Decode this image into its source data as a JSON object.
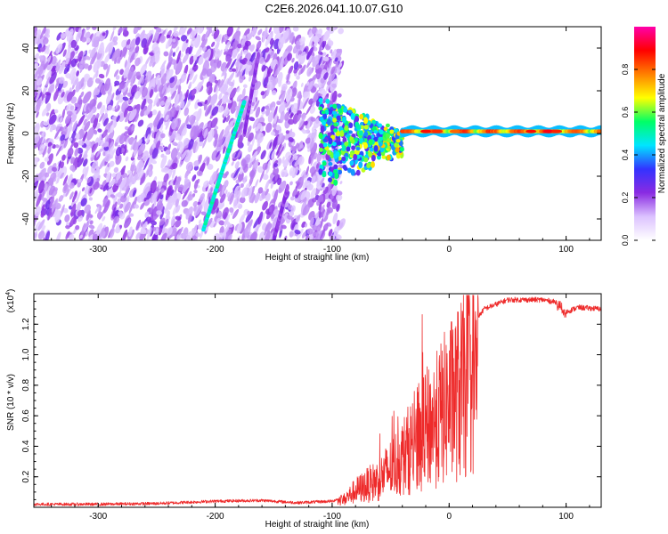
{
  "page_title": "C2E6.2026.041.10.07.G10",
  "chart_data": [
    {
      "type": "heatmap",
      "xlabel": "Height of straight line (km)",
      "ylabel": "Frequency (Hz)",
      "xlim": [
        -355,
        130
      ],
      "ylim": [
        -50,
        50
      ],
      "xticks": [
        -300,
        -200,
        -100,
        0,
        100
      ],
      "yticks": [
        -40,
        -20,
        0,
        20,
        40
      ],
      "colorbar": {
        "label": "Normalized spectral amplitude",
        "range": [
          0,
          1
        ],
        "ticks": [
          "0.0",
          "0.2",
          "0.4",
          "0.6",
          "0.8"
        ],
        "colors": [
          "#ffffff",
          "#dcc2ff",
          "#8a2be2",
          "#3333ff",
          "#00e5ff",
          "#00ff66",
          "#ffff00",
          "#ff8000",
          "#ff0000",
          "#ff00aa"
        ]
      },
      "features": [
        {
          "name": "noise-region",
          "x_range": [
            -355,
            -100
          ],
          "level": 0.15
        },
        {
          "name": "diagonal-trace",
          "points": [
            [
              -210,
              -45
            ],
            [
              -175,
              15
            ]
          ],
          "level": 0.45
        },
        {
          "name": "faint-diagonal",
          "points": [
            [
              -175,
              0
            ],
            [
              -163,
              37
            ]
          ],
          "level": 0.18
        },
        {
          "name": "faint-diagonal-low",
          "points": [
            [
              -150,
              -50
            ],
            [
              -138,
              -25
            ]
          ],
          "level": 0.18
        },
        {
          "name": "transition",
          "x_range": [
            -110,
            -40
          ],
          "level": 0.5
        },
        {
          "name": "carrier",
          "x_range": [
            -40,
            130
          ],
          "freq": 1,
          "level": 0.85
        }
      ]
    },
    {
      "type": "line",
      "xlabel": "Height of straight line (km)",
      "ylabel": "SNR (10 * v/v)",
      "scale_label": "(x10",
      "scale_exp": "4",
      "scale_close": ")",
      "xlim": [
        -355,
        130
      ],
      "ylim": [
        0,
        1.4
      ],
      "xticks": [
        -300,
        -200,
        -100,
        0,
        100
      ],
      "yticks": [
        0.2,
        0.4,
        0.6,
        0.8,
        1.0,
        1.2
      ],
      "ytick_labels": [
        "0.2",
        "0.4",
        "0.6",
        "0.8",
        "1.0",
        "1.2"
      ],
      "color": "#ee2a2a",
      "series_envelope": [
        [
          -355,
          0.02
        ],
        [
          -300,
          0.02
        ],
        [
          -250,
          0.025
        ],
        [
          -200,
          0.04
        ],
        [
          -160,
          0.045
        ],
        [
          -130,
          0.03
        ],
        [
          -100,
          0.04
        ],
        [
          -90,
          0.07
        ],
        [
          -80,
          0.15
        ],
        [
          -60,
          0.25
        ],
        [
          -40,
          0.45
        ],
        [
          -25,
          0.65
        ],
        [
          -10,
          0.8
        ],
        [
          0,
          0.95
        ],
        [
          10,
          1.05
        ],
        [
          20,
          1.2
        ],
        [
          30,
          1.3
        ],
        [
          50,
          1.36
        ],
        [
          80,
          1.36
        ],
        [
          95,
          1.34
        ],
        [
          100,
          1.28
        ],
        [
          110,
          1.31
        ],
        [
          130,
          1.3
        ]
      ]
    }
  ]
}
